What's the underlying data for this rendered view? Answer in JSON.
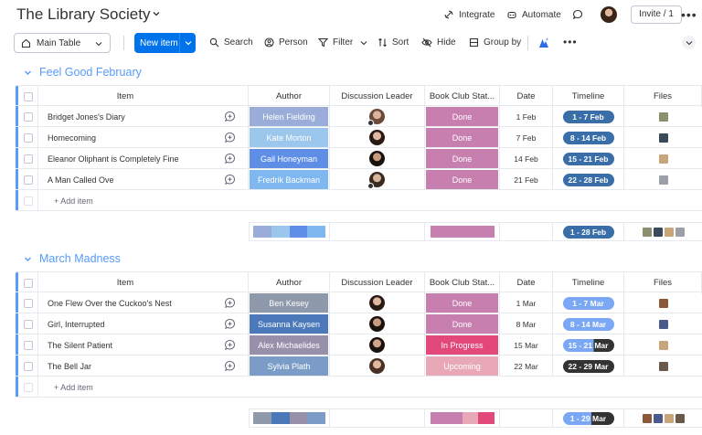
{
  "header": {
    "title": "The Library Society",
    "actions": {
      "integrate": "Integrate",
      "automate": "Automate"
    },
    "invite": "Invite / 1"
  },
  "toolbar": {
    "view": "Main Table",
    "new_item": "New item",
    "search": "Search",
    "person": "Person",
    "filter": "Filter",
    "sort": "Sort",
    "hide": "Hide",
    "group_by": "Group by"
  },
  "columns": {
    "item": "Item",
    "author": "Author",
    "leader": "Discussion Leader",
    "status": "Book Club Stat...",
    "date": "Date",
    "timeline": "Timeline",
    "files": "Files"
  },
  "groups": [
    {
      "title": "Feel Good February",
      "color": "#579bfc",
      "add_item": "+ Add item",
      "rows": [
        {
          "item": "Bridget Jones's Diary",
          "author": "Helen Fielding",
          "author_color": "#9aadd8",
          "status": "Done",
          "status_color": "#c77fb0",
          "date": "1 Feb",
          "timeline": "1 - 7 Feb",
          "timeline_color": "#3a6ea8",
          "face": [
            "#d9b2a0",
            "#6b4a3a"
          ],
          "badge": true,
          "file_colors": [
            "#8a8f6e"
          ]
        },
        {
          "item": "Homecoming",
          "author": "Kate Morton",
          "author_color": "#9bc7ec",
          "status": "Done",
          "status_color": "#c77fb0",
          "date": "7 Feb",
          "timeline": "8 - 14 Feb",
          "timeline_color": "#3a6ea8",
          "face": [
            "#e0b8a0",
            "#2a1a14"
          ],
          "badge": false,
          "file_colors": [
            "#3a4a5a"
          ]
        },
        {
          "item": "Eleanor Oliphant is Completely Fine",
          "author": "Gail Honeyman",
          "author_color": "#5f8ee6",
          "status": "Done",
          "status_color": "#c77fb0",
          "date": "14 Feb",
          "timeline": "15 - 21 Feb",
          "timeline_color": "#3a6ea8",
          "face": [
            "#c89a80",
            "#1a120e"
          ],
          "badge": false,
          "file_colors": [
            "#c9a67a"
          ]
        },
        {
          "item": "A Man Called Ove",
          "author": "Fredrik Backman",
          "author_color": "#7fb8f0",
          "status": "Done",
          "status_color": "#c77fb0",
          "date": "21 Feb",
          "timeline": "22 - 28 Feb",
          "timeline_color": "#3a6ea8",
          "face": [
            "#d8b49c",
            "#3a2a20"
          ],
          "badge": true,
          "file_colors": [
            "#9aa0a6"
          ]
        }
      ],
      "summary": {
        "author_colors": [
          "#9aadd8",
          "#9bc7ec",
          "#5f8ee6",
          "#7fb8f0"
        ],
        "status_colors": [
          "#c77fb0"
        ],
        "timeline": "1 - 28 Feb",
        "timeline_color": "#3a6ea8",
        "file_colors": [
          "#8a8f6e",
          "#3a4a5a",
          "#c9a67a",
          "#9aa0a6"
        ]
      }
    },
    {
      "title": "March Madness",
      "color": "#579bfc",
      "add_item": "+ Add item",
      "rows": [
        {
          "item": "One Flew Over the Cuckoo's Nest",
          "author": "Ben Kesey",
          "author_color": "#8e99ab",
          "status": "Done",
          "status_color": "#c77fb0",
          "date": "1 Mar",
          "timeline": "1 - 7 Mar",
          "timeline_color": "#7aa8f5",
          "timeline_fill": 1.0,
          "face": [
            "#e0b8a0",
            "#2a1a14"
          ],
          "badge": false,
          "file_colors": [
            "#8a5a3a"
          ]
        },
        {
          "item": "Girl, Interrupted",
          "author": "Susanna Kaysen",
          "author_color": "#4a78b8",
          "status": "Done",
          "status_color": "#c77fb0",
          "date": "8 Mar",
          "timeline": "8 - 14 Mar",
          "timeline_color": "#7aa8f5",
          "timeline_fill": 1.0,
          "face": [
            "#c89a80",
            "#1a120e"
          ],
          "badge": false,
          "file_colors": [
            "#4a5a8a"
          ]
        },
        {
          "item": "The Silent Patient",
          "author": "Alex Michaelides",
          "author_color": "#9790ab",
          "status": "In Progress",
          "status_color": "#e2487a",
          "date": "15 Mar",
          "timeline": "15 - 21 Mar",
          "timeline_color": "#7aa8f5",
          "timeline_fill": 0.6,
          "face": [
            "#d0a48a",
            "#1a120e"
          ],
          "badge": false,
          "file_colors": [
            "#c9a67a"
          ]
        },
        {
          "item": "The Bell Jar",
          "author": "Sylvia Plath",
          "author_color": "#7a9cc6",
          "status": "Upcoming",
          "status_color": "#e8a8b8",
          "date": "22 Mar",
          "timeline": "22 - 29 Mar",
          "timeline_color": "#7aa8f5",
          "timeline_fill": 0.0,
          "face": [
            "#e0b8a0",
            "#4a3024"
          ],
          "badge": false,
          "file_colors": [
            "#6a5a4a"
          ]
        }
      ],
      "summary": {
        "author_colors": [
          "#8e99ab",
          "#4a78b8",
          "#9790ab",
          "#7a9cc6"
        ],
        "status_colors": [
          "#c77fb0",
          "#c77fb0",
          "#e8a8b8",
          "#e2487a"
        ],
        "timeline": "1 - 29 Mar",
        "timeline_color": "#7aa8f5",
        "timeline_fill": 0.55,
        "file_colors": [
          "#8a5a3a",
          "#4a5a8a",
          "#c9a67a",
          "#6a5a4a"
        ]
      }
    }
  ]
}
